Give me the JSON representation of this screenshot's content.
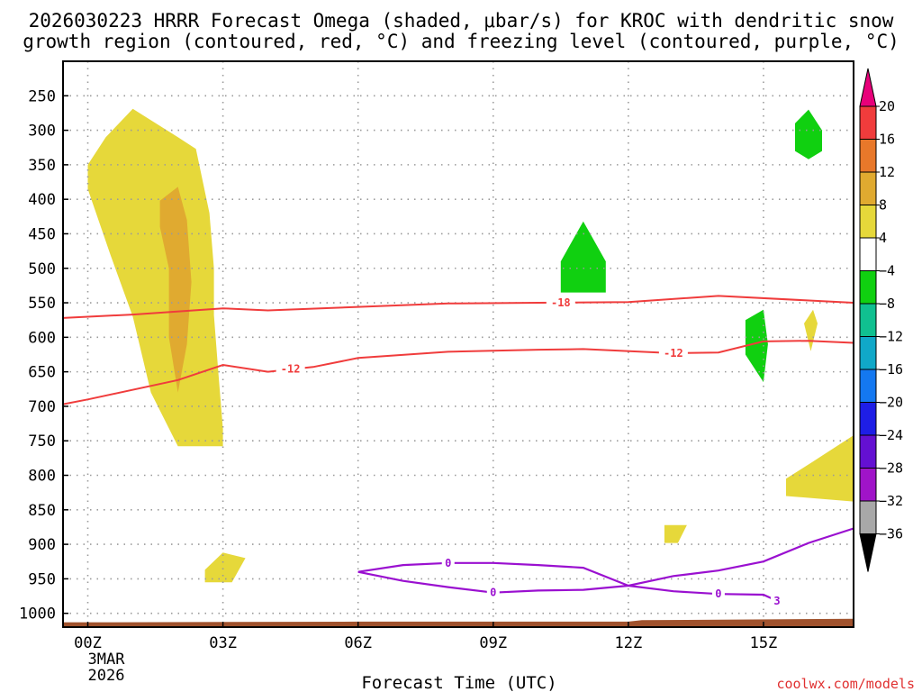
{
  "chart_data": {
    "type": "time-height cross section",
    "title_lines": [
      "2026030223 HRRR Forecast Omega (shaded, μbar/s) for KROC with dendritic snow",
      "growth region (contoured, red, °C) and freezing level (contoured, purple, °C)"
    ],
    "xlabel": "Forecast Time (UTC)",
    "ylabel": "",
    "x_ticks": [
      {
        "hour": 0,
        "label": "00Z"
      },
      {
        "hour": 3,
        "label": "03Z"
      },
      {
        "hour": 6,
        "label": "06Z"
      },
      {
        "hour": 9,
        "label": "09Z"
      },
      {
        "hour": 12,
        "label": "12Z"
      },
      {
        "hour": 15,
        "label": "15Z"
      }
    ],
    "x_date_lines": [
      "3MAR",
      "2026"
    ],
    "xlim_hours": [
      -0.55,
      17
    ],
    "y_ticks_hpa": [
      250,
      300,
      350,
      400,
      450,
      500,
      550,
      600,
      650,
      700,
      750,
      800,
      850,
      900,
      950,
      1000
    ],
    "ylim_hpa": [
      200,
      1020
    ],
    "grid": true,
    "colorbar": {
      "units": "μbar/s",
      "labels": [
        "20",
        "16",
        "12",
        "8",
        "4",
        "−4",
        "−8",
        "−12",
        "−16",
        "−20",
        "−24",
        "−28",
        "−32",
        "−36"
      ],
      "colors": [
        "#e8007a",
        "#f03c3c",
        "#e8782a",
        "#e0aa30",
        "#e6d83a",
        "#ffffff",
        "#10d010",
        "#10c090",
        "#10a8c8",
        "#1478f0",
        "#1e1ee6",
        "#6410d2",
        "#a014c8",
        "#a8a8a8",
        "#000000"
      ]
    },
    "contour_labels": {
      "dgz_upper": "-18",
      "dgz_lower": "-12",
      "freezing": "0",
      "freezing_small": "3"
    },
    "dgz_upper_boundary": [
      [
        -0.55,
        572
      ],
      [
        1,
        567
      ],
      [
        3,
        558
      ],
      [
        4,
        561
      ],
      [
        6,
        556
      ],
      [
        8,
        551
      ],
      [
        10,
        550
      ],
      [
        12,
        549
      ],
      [
        14,
        540
      ],
      [
        17,
        550
      ]
    ],
    "dgz_lower_boundary": [
      [
        -0.55,
        697
      ],
      [
        0,
        690
      ],
      [
        2,
        662
      ],
      [
        3,
        640
      ],
      [
        4,
        650
      ],
      [
        5,
        643
      ],
      [
        6,
        630
      ],
      [
        8,
        621
      ],
      [
        10,
        618
      ],
      [
        11,
        617
      ],
      [
        13,
        623
      ],
      [
        14,
        622
      ],
      [
        15,
        606
      ],
      [
        16,
        605
      ],
      [
        17,
        608
      ]
    ],
    "freezing_level": {
      "upper": [
        [
          6,
          940
        ],
        [
          7,
          930
        ],
        [
          8,
          927
        ],
        [
          9,
          927
        ],
        [
          10,
          930
        ],
        [
          11,
          934
        ],
        [
          12,
          960
        ],
        [
          13,
          946
        ],
        [
          14,
          938
        ],
        [
          15,
          925
        ],
        [
          16,
          898
        ],
        [
          17,
          877
        ]
      ],
      "lower": [
        [
          6,
          940
        ],
        [
          7,
          953
        ],
        [
          8,
          962
        ],
        [
          9,
          970
        ],
        [
          10,
          967
        ],
        [
          11,
          966
        ],
        [
          12,
          960
        ],
        [
          13,
          968
        ],
        [
          14,
          972
        ],
        [
          15,
          973
        ],
        [
          15.3,
          982
        ]
      ]
    },
    "omega_regions": [
      {
        "category": "4-8",
        "color": "#e6d83a",
        "outline": [
          [
            1,
            269
          ],
          [
            2,
            310
          ],
          [
            2.4,
            327
          ],
          [
            2.7,
            420
          ],
          [
            2.8,
            500
          ],
          [
            2.8,
            568
          ],
          [
            2.9,
            653
          ],
          [
            3,
            733
          ],
          [
            3,
            758
          ],
          [
            2,
            758
          ],
          [
            1.4,
            680
          ],
          [
            1.0,
            570
          ],
          [
            0.5,
            480
          ],
          [
            0,
            385
          ],
          [
            0,
            350
          ],
          [
            0.4,
            310
          ]
        ]
      },
      {
        "category": "8-12",
        "color": "#e0aa30",
        "outline": [
          [
            1.6,
            402
          ],
          [
            2,
            382
          ],
          [
            2.2,
            430
          ],
          [
            2.3,
            520
          ],
          [
            2.2,
            610
          ],
          [
            2.0,
            680
          ],
          [
            1.8,
            600
          ],
          [
            1.8,
            500
          ],
          [
            1.6,
            440
          ]
        ]
      },
      {
        "category": "-4 to -8",
        "color": "#10d010",
        "outline": [
          [
            11,
            432
          ],
          [
            11.5,
            490
          ],
          [
            11.5,
            535
          ],
          [
            10.5,
            535
          ],
          [
            10.5,
            490
          ]
        ]
      },
      {
        "category": "-4 to -8",
        "color": "#10d010",
        "outline": [
          [
            16,
            270
          ],
          [
            16.3,
            300
          ],
          [
            16.3,
            330
          ],
          [
            16,
            342
          ],
          [
            15.7,
            330
          ],
          [
            15.7,
            290
          ]
        ]
      },
      {
        "category": "-4 to -8",
        "color": "#10d010",
        "outline": [
          [
            15,
            560
          ],
          [
            15.1,
            610
          ],
          [
            15,
            665
          ],
          [
            14.6,
            625
          ],
          [
            14.6,
            575
          ]
        ]
      },
      {
        "category": "4-8",
        "color": "#e6d83a",
        "outline": [
          [
            16.1,
            560
          ],
          [
            16.2,
            580
          ],
          [
            16.05,
            620
          ],
          [
            15.9,
            580
          ]
        ]
      },
      {
        "category": "4-8",
        "color": "#e6d83a",
        "outline": [
          [
            17,
            742
          ],
          [
            17,
            838
          ],
          [
            15.5,
            830
          ],
          [
            15.5,
            805
          ],
          [
            16.1,
            780
          ]
        ]
      },
      {
        "category": "4-8",
        "color": "#e6d83a",
        "outline": [
          [
            2.6,
            937
          ],
          [
            3,
            912
          ],
          [
            3.5,
            920
          ],
          [
            3.2,
            955
          ],
          [
            2.6,
            955
          ]
        ]
      },
      {
        "category": "4-8",
        "color": "#e6d83a",
        "outline": [
          [
            12.8,
            872
          ],
          [
            13.3,
            872
          ],
          [
            13.1,
            898
          ],
          [
            12.8,
            898
          ]
        ]
      }
    ],
    "terrain": {
      "color": "#a0522d",
      "surface": [
        [
          -0.55,
          1013
        ],
        [
          0.6,
          1013
        ],
        [
          6,
          1012
        ],
        [
          12,
          1012
        ],
        [
          12.3,
          1010
        ],
        [
          17,
          1008
        ]
      ]
    }
  },
  "credit": "coolwx.com/models"
}
